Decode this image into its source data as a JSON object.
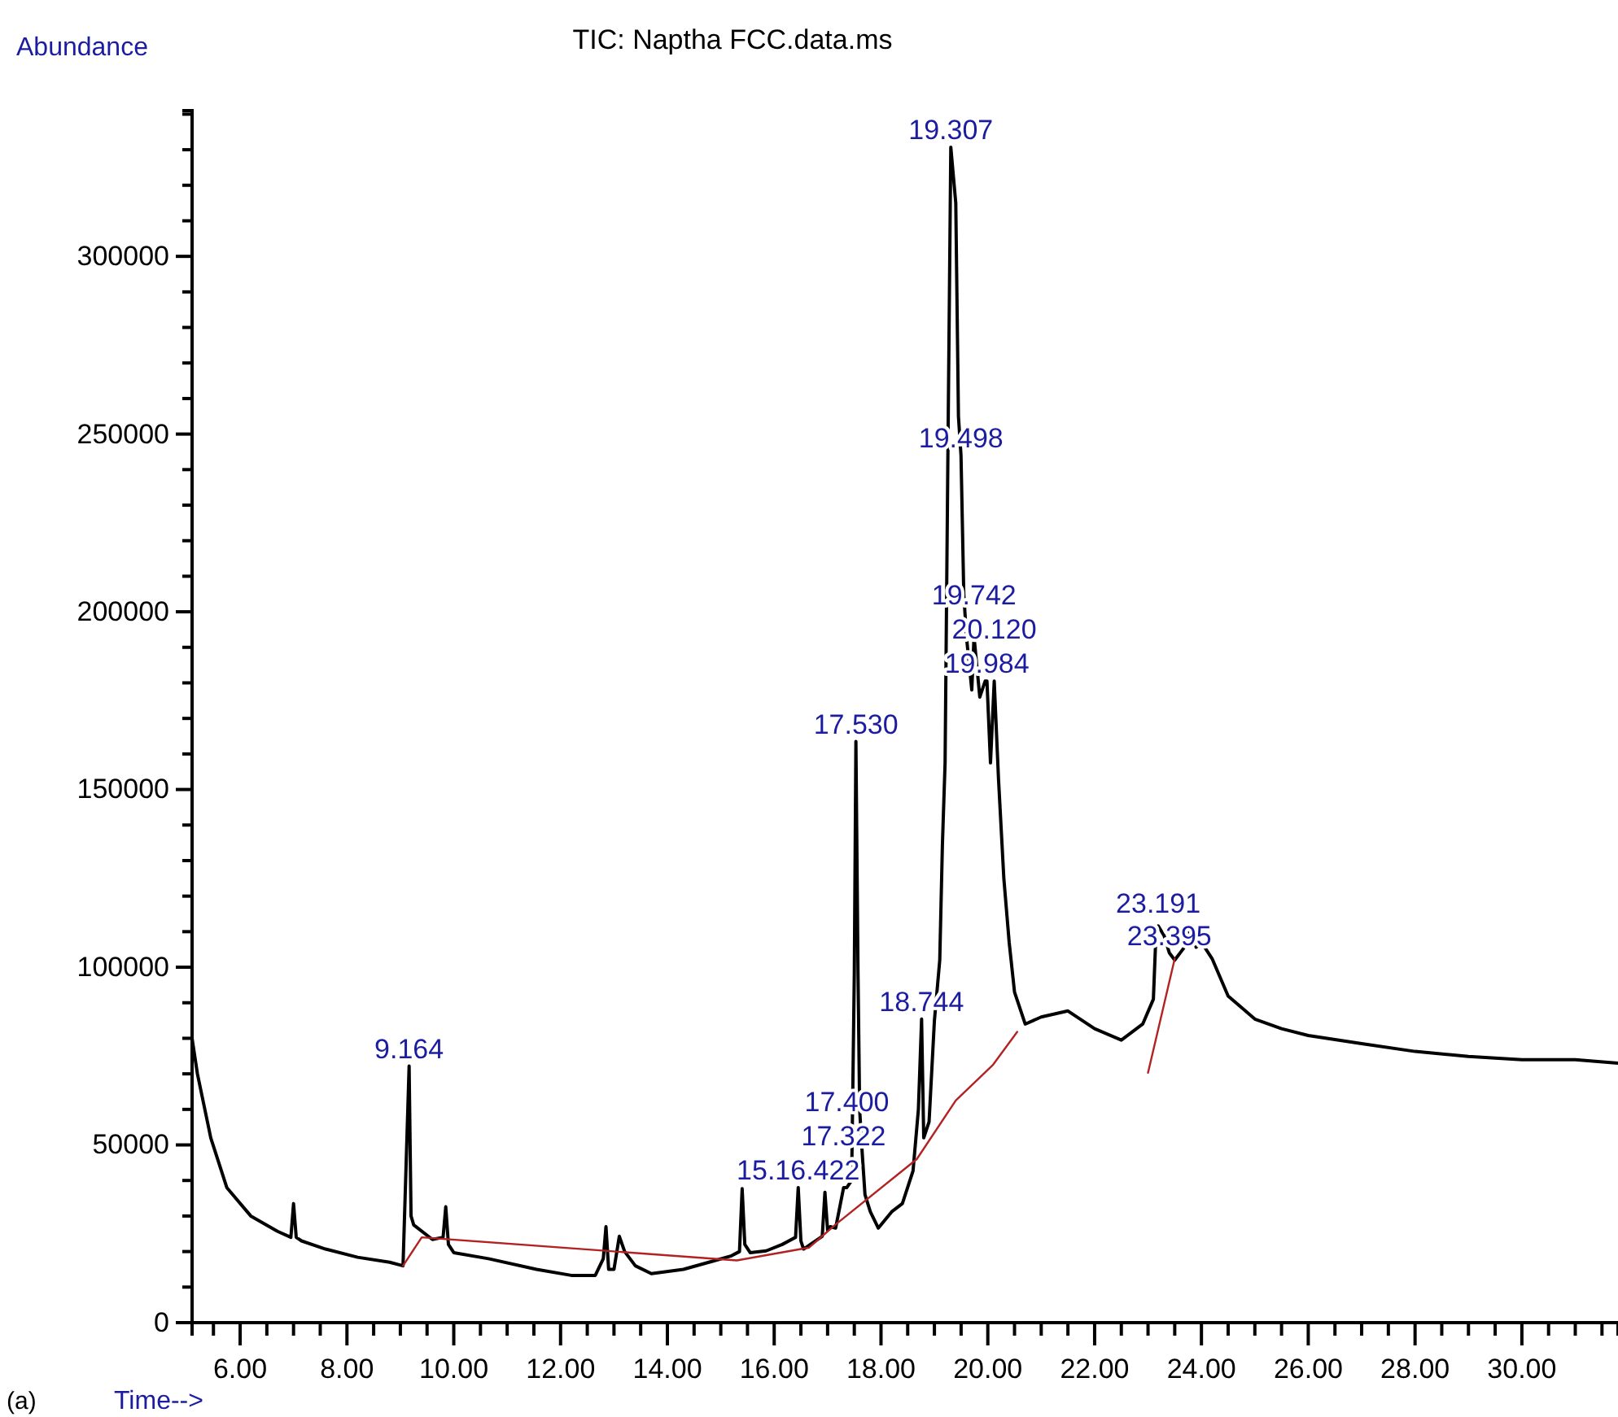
{
  "chart_data": {
    "type": "line",
    "title": "TIC: Naptha FCC.data.ms",
    "xlabel": "Time-->",
    "ylabel": "Abundance",
    "xlim": [
      5.1,
      31.8
    ],
    "xticks": [
      {
        "value": 5.5,
        "label": null
      },
      {
        "value": 6,
        "label": "6.00"
      },
      {
        "value": 6.5,
        "label": null
      },
      {
        "value": 7,
        "label": null
      },
      {
        "value": 7.5,
        "label": null
      },
      {
        "value": 8,
        "label": "8.00"
      },
      {
        "value": 8.5,
        "label": null
      },
      {
        "value": 9,
        "label": null
      },
      {
        "value": 9.5,
        "label": null
      },
      {
        "value": 10,
        "label": "10.00"
      },
      {
        "value": 10.5,
        "label": null
      },
      {
        "value": 11,
        "label": null
      },
      {
        "value": 11.5,
        "label": null
      },
      {
        "value": 12,
        "label": "12.00"
      },
      {
        "value": 12.5,
        "label": null
      },
      {
        "value": 13,
        "label": null
      },
      {
        "value": 13.5,
        "label": null
      },
      {
        "value": 14,
        "label": "14.00"
      },
      {
        "value": 14.5,
        "label": null
      },
      {
        "value": 15,
        "label": null
      },
      {
        "value": 15.5,
        "label": null
      },
      {
        "value": 16,
        "label": "16.00"
      },
      {
        "value": 16.5,
        "label": null
      },
      {
        "value": 17,
        "label": null
      },
      {
        "value": 17.5,
        "label": null
      },
      {
        "value": 18,
        "label": "18.00"
      },
      {
        "value": 18.5,
        "label": null
      },
      {
        "value": 19,
        "label": null
      },
      {
        "value": 19.5,
        "label": null
      },
      {
        "value": 20,
        "label": "20.00"
      },
      {
        "value": 20.5,
        "label": null
      },
      {
        "value": 21,
        "label": null
      },
      {
        "value": 21.5,
        "label": null
      },
      {
        "value": 22,
        "label": "22.00"
      },
      {
        "value": 22.5,
        "label": null
      },
      {
        "value": 23,
        "label": null
      },
      {
        "value": 23.5,
        "label": null
      },
      {
        "value": 24,
        "label": "24.00"
      },
      {
        "value": 24.5,
        "label": null
      },
      {
        "value": 25,
        "label": null
      },
      {
        "value": 25.5,
        "label": null
      },
      {
        "value": 26,
        "label": "26.00"
      },
      {
        "value": 26.5,
        "label": null
      },
      {
        "value": 27,
        "label": null
      },
      {
        "value": 27.5,
        "label": null
      },
      {
        "value": 28,
        "label": "28.00"
      },
      {
        "value": 28.5,
        "label": null
      },
      {
        "value": 29,
        "label": null
      },
      {
        "value": 29.5,
        "label": null
      },
      {
        "value": 30,
        "label": "30.00"
      },
      {
        "value": 30.5,
        "label": null
      },
      {
        "value": 31,
        "label": null
      },
      {
        "value": 31.5,
        "label": null
      }
    ],
    "ylim": [
      0,
      341000
    ],
    "yticks": [
      0,
      {
        "value": 10000,
        "label": null
      },
      {
        "value": 20000,
        "label": null
      },
      {
        "value": 30000,
        "label": null
      },
      {
        "value": 40000,
        "label": null
      },
      50000,
      {
        "value": 60000,
        "label": null
      },
      {
        "value": 70000,
        "label": null
      },
      {
        "value": 80000,
        "label": null
      },
      {
        "value": 90000,
        "label": null
      },
      100000,
      {
        "value": 110000,
        "label": null
      },
      {
        "value": 120000,
        "label": null
      },
      {
        "value": 130000,
        "label": null
      },
      {
        "value": 140000,
        "label": null
      },
      150000,
      {
        "value": 160000,
        "label": null
      },
      {
        "value": 170000,
        "label": null
      },
      {
        "value": 180000,
        "label": null
      },
      {
        "value": 190000,
        "label": null
      },
      200000,
      {
        "value": 210000,
        "label": null
      },
      {
        "value": 220000,
        "label": null
      },
      {
        "value": 230000,
        "label": null
      },
      {
        "value": 240000,
        "label": null
      },
      250000,
      {
        "value": 260000,
        "label": null
      },
      {
        "value": 270000,
        "label": null
      },
      {
        "value": 280000,
        "label": null
      },
      {
        "value": 290000,
        "label": null
      },
      300000,
      {
        "value": 310000,
        "label": null
      },
      {
        "value": 320000,
        "label": null
      },
      {
        "value": 330000,
        "label": null
      },
      {
        "value": 340000,
        "label": null
      }
    ],
    "grid": false,
    "marker": "none",
    "line_style": "solid",
    "series": [
      {
        "color": "#000000",
        "x": [
          5.1,
          5.2,
          5.45,
          5.75,
          6.2,
          6.7,
          6.95,
          7.0,
          7.05,
          7.15,
          7.6,
          8.2,
          8.8,
          9.05,
          9.12,
          9.164,
          9.2,
          9.25,
          9.6,
          9.8,
          9.85,
          9.9,
          10.0,
          10.65,
          11.55,
          12.2,
          12.65,
          12.8,
          12.85,
          12.9,
          13.0,
          13.1,
          13.2,
          13.4,
          13.7,
          14.3,
          14.9,
          15.2,
          15.35,
          15.4,
          15.45,
          15.55,
          15.85,
          16.15,
          16.4,
          16.45,
          16.5,
          16.55,
          16.9,
          16.95,
          17.0,
          17.05,
          17.15,
          17.3,
          17.36,
          17.45,
          17.5,
          17.53,
          17.57,
          17.6,
          17.65,
          17.7,
          17.8,
          17.95,
          18.2,
          18.4,
          18.6,
          18.7,
          18.76,
          18.8,
          18.9,
          19.0,
          19.1,
          19.15,
          19.2,
          19.25,
          19.307,
          19.4,
          19.45,
          19.498,
          19.55,
          19.6,
          19.7,
          19.742,
          19.85,
          19.95,
          19.984,
          20.05,
          20.12,
          20.2,
          20.3,
          20.4,
          20.5,
          20.7,
          21.0,
          21.5,
          22.0,
          22.5,
          22.9,
          23.1,
          23.15,
          23.191,
          23.3,
          23.4,
          23.5,
          23.7,
          23.8,
          23.9,
          24.0,
          24.2,
          24.5,
          25.0,
          25.5,
          26.0,
          27.0,
          28.0,
          29.0,
          30.0,
          31.0,
          31.8
        ],
        "values": [
          80000,
          70000,
          52000,
          38000,
          30000,
          25700,
          24000,
          33500,
          24000,
          23000,
          20700,
          18400,
          17000,
          16000,
          50500,
          72200,
          30000,
          27500,
          23400,
          24000,
          32600,
          22000,
          19700,
          18000,
          15000,
          13300,
          13300,
          18000,
          27000,
          15000,
          15000,
          24300,
          20000,
          16000,
          13800,
          15000,
          17500,
          18800,
          20000,
          37700,
          22000,
          19700,
          20200,
          22000,
          24000,
          38000,
          23000,
          20700,
          24300,
          36700,
          26000,
          27000,
          26600,
          38000,
          38000,
          40000,
          98000,
          163500,
          97800,
          60000,
          47300,
          36000,
          31200,
          26600,
          31200,
          33500,
          42700,
          60000,
          85400,
          52000,
          56500,
          85000,
          102000,
          134600,
          157500,
          240000,
          330700,
          315000,
          255000,
          244000,
          205000,
          193000,
          178000,
          193000,
          176000,
          180500,
          180500,
          157500,
          180500,
          153000,
          125000,
          107000,
          93000,
          84000,
          86000,
          87700,
          82700,
          79500,
          84000,
          91000,
          110000,
          111600,
          108900,
          104000,
          102000,
          106000,
          111600,
          105600,
          107000,
          102400,
          91900,
          85400,
          82700,
          80800,
          78500,
          76300,
          74900,
          74000,
          74000,
          73000
        ]
      },
      {
        "color": "#b22222",
        "x": [
          9.05,
          9.4,
          15.3,
          16.65,
          17.15,
          18.67,
          19.4,
          20.1,
          20.55
        ],
        "values": [
          16000,
          24000,
          17500,
          21100,
          27600,
          46000,
          62500,
          72600,
          81800
        ]
      },
      {
        "color": "#b22222",
        "x": [
          23.0,
          23.5
        ],
        "values": [
          70300,
          102400
        ]
      }
    ],
    "annotations": [
      {
        "text": "9.164",
        "x": 9.164,
        "y": 72200
      },
      {
        "text": "15.16.422",
        "x": 16.45,
        "y": 38000
      },
      {
        "text": "17.322",
        "x": 17.3,
        "y": 38000
      },
      {
        "text": "17.400",
        "x": 17.36,
        "y": 38000
      },
      {
        "text": "17.530",
        "x": 17.53,
        "y": 163500
      },
      {
        "text": "18.744",
        "x": 18.76,
        "y": 85400
      },
      {
        "text": "19.307",
        "x": 19.307,
        "y": 330700
      },
      {
        "text": "19.498",
        "x": 19.498,
        "y": 244000
      },
      {
        "text": "19.984",
        "x": 19.984,
        "y": 180500
      },
      {
        "text": "20.120",
        "x": 20.12,
        "y": 180500
      },
      {
        "text": "19.742",
        "x": 19.742,
        "y": 193000
      },
      {
        "text": "23.395",
        "x": 23.4,
        "y": 104000
      },
      {
        "text": "23.191",
        "x": 23.191,
        "y": 111600
      },
      "(a)"
    ]
  }
}
